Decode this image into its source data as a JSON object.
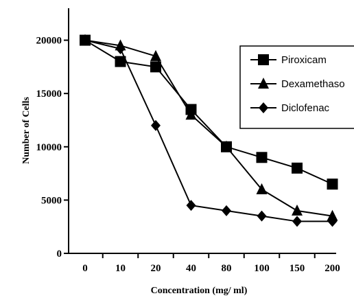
{
  "chart_data": {
    "type": "line",
    "title": "",
    "xlabel": "Concentration (mg/ ml)",
    "ylabel": "Number of Cells",
    "categories": [
      "0",
      "10",
      "20",
      "40",
      "80",
      "100",
      "150",
      "200"
    ],
    "ylim": [
      0,
      23000
    ],
    "yticks": [
      "0",
      "5000",
      "10000",
      "15000",
      "20000"
    ],
    "grid": false,
    "legend_position": "top-right",
    "series": [
      {
        "name": "Piroxicam",
        "marker": "square",
        "values": [
          20000,
          18000,
          17500,
          13500,
          10000,
          9000,
          8000,
          6500
        ]
      },
      {
        "name": "Dexamethaso",
        "marker": "triangle",
        "values": [
          20000,
          19500,
          18500,
          13000,
          10000,
          6000,
          4000,
          3500
        ]
      },
      {
        "name": "Diclofenac",
        "marker": "diamond",
        "values": [
          20000,
          19200,
          12000,
          4500,
          4000,
          3500,
          3000,
          3000
        ]
      }
    ],
    "colors": {
      "line": "#000000",
      "marker": "#000000",
      "background": "#ffffff"
    }
  }
}
